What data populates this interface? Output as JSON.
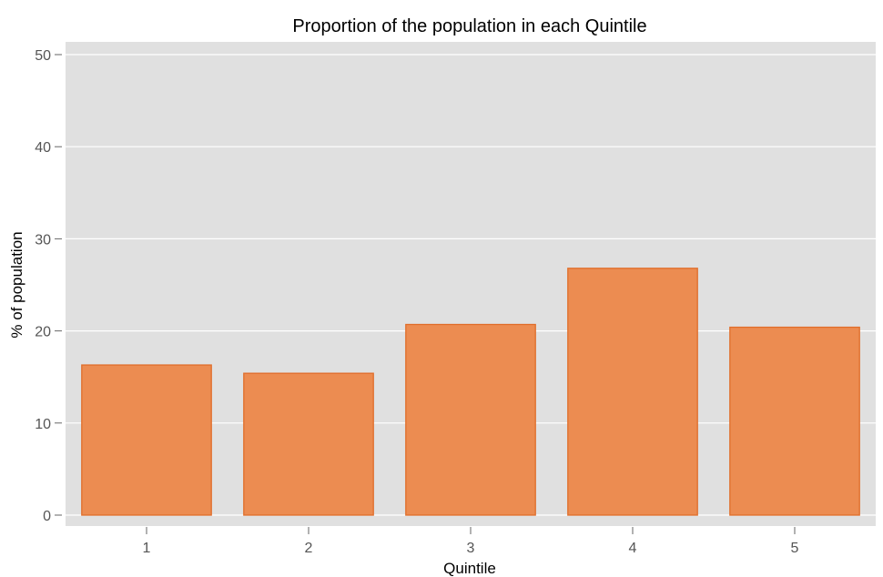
{
  "colors": {
    "panel_background": "#e0e0e0",
    "gridline": "#ffffff",
    "bar_fill": "#ec8c51",
    "bar_stroke": "#e06d2a",
    "tick": "#666666"
  },
  "chart_data": {
    "type": "bar",
    "title": "Proportion of the population in each Quintile",
    "xlabel": "Quintile",
    "ylabel": "% of population",
    "categories": [
      "1",
      "2",
      "3",
      "4",
      "5"
    ],
    "values": [
      16.3,
      15.4,
      20.7,
      26.8,
      20.4
    ],
    "ylim": [
      0,
      50
    ],
    "yticks": [
      0,
      10,
      20,
      30,
      40,
      50
    ],
    "grid": true,
    "legend": "none"
  }
}
